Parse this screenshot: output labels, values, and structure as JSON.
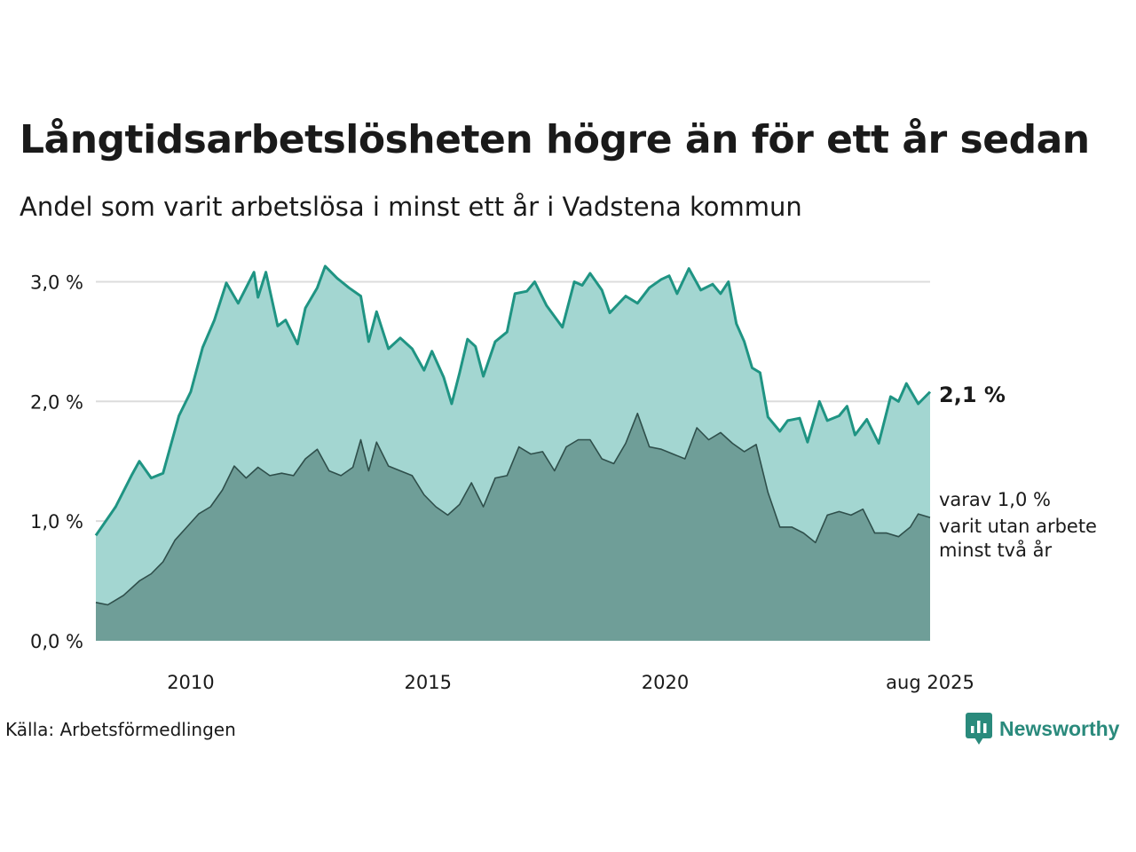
{
  "title": "Långtidsarbetslösheten högre än för ett år sedan",
  "subtitle": "Andel som varit arbetslösa i minst ett år i Vadstena kommun",
  "source": "Källa: Arbetsförmedlingen",
  "brand": "Newsworthy",
  "colors": {
    "line_total": "#1f9483",
    "area_total": "#a3d6d1",
    "line_two_years": "#2f4f4b",
    "area_two_years": "#6f9e98",
    "grid": "#dcdcdc",
    "brand": "#2a8a7c"
  },
  "chart_data": {
    "type": "area",
    "x_start": "2008-01",
    "x_end": "2025-08",
    "xticks": [
      {
        "x": "2010-01",
        "label": "2010"
      },
      {
        "x": "2015-01",
        "label": "2015"
      },
      {
        "x": "2020-01",
        "label": "2020"
      },
      {
        "x": "2025-08",
        "label": "aug 2025"
      }
    ],
    "ylim": [
      0,
      3.3
    ],
    "yticks": [
      {
        "value": 0,
        "label": "0,0 %"
      },
      {
        "value": 1,
        "label": "1,0 %"
      },
      {
        "value": 2,
        "label": "2,0 %"
      },
      {
        "value": 3,
        "label": "3,0 %"
      }
    ],
    "grid": true,
    "annotations": {
      "total_end": "2,1 %",
      "two_years_end": [
        "varav 1,0 %",
        "varit utan arbete",
        "minst två år"
      ]
    },
    "series": [
      {
        "key": "total",
        "anchors": [
          [
            "2008-01",
            0.88
          ],
          [
            "2008-06",
            1.12
          ],
          [
            "2008-10",
            1.38
          ],
          [
            "2008-12",
            1.5
          ],
          [
            "2009-03",
            1.36
          ],
          [
            "2009-06",
            1.4
          ],
          [
            "2009-10",
            1.88
          ],
          [
            "2010-01",
            2.08
          ],
          [
            "2010-04",
            2.45
          ],
          [
            "2010-07",
            2.68
          ],
          [
            "2010-10",
            2.99
          ],
          [
            "2011-01",
            2.82
          ],
          [
            "2011-05",
            3.08
          ],
          [
            "2011-06",
            2.87
          ],
          [
            "2011-08",
            3.08
          ],
          [
            "2011-11",
            2.63
          ],
          [
            "2012-01",
            2.68
          ],
          [
            "2012-04",
            2.48
          ],
          [
            "2012-06",
            2.78
          ],
          [
            "2012-09",
            2.95
          ],
          [
            "2012-11",
            3.13
          ],
          [
            "2013-02",
            3.03
          ],
          [
            "2013-05",
            2.95
          ],
          [
            "2013-08",
            2.88
          ],
          [
            "2013-10",
            2.5
          ],
          [
            "2013-12",
            2.75
          ],
          [
            "2014-03",
            2.44
          ],
          [
            "2014-06",
            2.53
          ],
          [
            "2014-09",
            2.44
          ],
          [
            "2014-12",
            2.26
          ],
          [
            "2015-02",
            2.42
          ],
          [
            "2015-05",
            2.2
          ],
          [
            "2015-07",
            1.98
          ],
          [
            "2015-09",
            2.24
          ],
          [
            "2015-11",
            2.52
          ],
          [
            "2016-01",
            2.46
          ],
          [
            "2016-03",
            2.21
          ],
          [
            "2016-06",
            2.5
          ],
          [
            "2016-09",
            2.58
          ],
          [
            "2016-11",
            2.9
          ],
          [
            "2017-02",
            2.92
          ],
          [
            "2017-04",
            3.0
          ],
          [
            "2017-07",
            2.8
          ],
          [
            "2017-11",
            2.62
          ],
          [
            "2018-02",
            3.0
          ],
          [
            "2018-04",
            2.97
          ],
          [
            "2018-06",
            3.07
          ],
          [
            "2018-09",
            2.93
          ],
          [
            "2018-11",
            2.74
          ],
          [
            "2019-03",
            2.88
          ],
          [
            "2019-06",
            2.82
          ],
          [
            "2019-09",
            2.95
          ],
          [
            "2019-12",
            3.02
          ],
          [
            "2020-02",
            3.05
          ],
          [
            "2020-04",
            2.9
          ],
          [
            "2020-07",
            3.11
          ],
          [
            "2020-10",
            2.93
          ],
          [
            "2021-01",
            2.98
          ],
          [
            "2021-03",
            2.9
          ],
          [
            "2021-05",
            3.0
          ],
          [
            "2021-07",
            2.65
          ],
          [
            "2021-09",
            2.5
          ],
          [
            "2021-11",
            2.28
          ],
          [
            "2022-01",
            2.24
          ],
          [
            "2022-03",
            1.87
          ],
          [
            "2022-06",
            1.75
          ],
          [
            "2022-08",
            1.84
          ],
          [
            "2022-11",
            1.86
          ],
          [
            "2023-01",
            1.66
          ],
          [
            "2023-04",
            2.0
          ],
          [
            "2023-06",
            1.84
          ],
          [
            "2023-09",
            1.88
          ],
          [
            "2023-11",
            1.96
          ],
          [
            "2024-01",
            1.72
          ],
          [
            "2024-04",
            1.85
          ],
          [
            "2024-07",
            1.65
          ],
          [
            "2024-10",
            2.04
          ],
          [
            "2024-12",
            2.0
          ],
          [
            "2025-02",
            2.15
          ],
          [
            "2025-05",
            1.98
          ],
          [
            "2025-08",
            2.08
          ]
        ]
      },
      {
        "key": "two_years",
        "anchors": [
          [
            "2008-01",
            0.32
          ],
          [
            "2008-04",
            0.3
          ],
          [
            "2008-08",
            0.38
          ],
          [
            "2008-12",
            0.5
          ],
          [
            "2009-03",
            0.56
          ],
          [
            "2009-06",
            0.66
          ],
          [
            "2009-09",
            0.84
          ],
          [
            "2009-12",
            0.95
          ],
          [
            "2010-03",
            1.06
          ],
          [
            "2010-06",
            1.12
          ],
          [
            "2010-09",
            1.26
          ],
          [
            "2010-12",
            1.46
          ],
          [
            "2011-03",
            1.36
          ],
          [
            "2011-06",
            1.45
          ],
          [
            "2011-09",
            1.38
          ],
          [
            "2011-12",
            1.4
          ],
          [
            "2012-03",
            1.38
          ],
          [
            "2012-06",
            1.52
          ],
          [
            "2012-09",
            1.6
          ],
          [
            "2012-12",
            1.42
          ],
          [
            "2013-03",
            1.38
          ],
          [
            "2013-06",
            1.45
          ],
          [
            "2013-08",
            1.68
          ],
          [
            "2013-10",
            1.42
          ],
          [
            "2013-12",
            1.66
          ],
          [
            "2014-03",
            1.46
          ],
          [
            "2014-06",
            1.42
          ],
          [
            "2014-09",
            1.38
          ],
          [
            "2014-12",
            1.22
          ],
          [
            "2015-03",
            1.12
          ],
          [
            "2015-06",
            1.05
          ],
          [
            "2015-09",
            1.14
          ],
          [
            "2015-12",
            1.32
          ],
          [
            "2016-03",
            1.12
          ],
          [
            "2016-06",
            1.36
          ],
          [
            "2016-09",
            1.38
          ],
          [
            "2016-12",
            1.62
          ],
          [
            "2017-03",
            1.56
          ],
          [
            "2017-06",
            1.58
          ],
          [
            "2017-09",
            1.42
          ],
          [
            "2017-12",
            1.62
          ],
          [
            "2018-03",
            1.68
          ],
          [
            "2018-06",
            1.68
          ],
          [
            "2018-09",
            1.52
          ],
          [
            "2018-12",
            1.48
          ],
          [
            "2019-03",
            1.65
          ],
          [
            "2019-06",
            1.9
          ],
          [
            "2019-09",
            1.62
          ],
          [
            "2019-12",
            1.6
          ],
          [
            "2020-03",
            1.56
          ],
          [
            "2020-06",
            1.52
          ],
          [
            "2020-09",
            1.78
          ],
          [
            "2020-12",
            1.68
          ],
          [
            "2021-03",
            1.74
          ],
          [
            "2021-06",
            1.65
          ],
          [
            "2021-09",
            1.58
          ],
          [
            "2021-12",
            1.64
          ],
          [
            "2022-03",
            1.24
          ],
          [
            "2022-06",
            0.95
          ],
          [
            "2022-09",
            0.95
          ],
          [
            "2022-12",
            0.9
          ],
          [
            "2023-03",
            0.82
          ],
          [
            "2023-06",
            1.05
          ],
          [
            "2023-09",
            1.08
          ],
          [
            "2023-12",
            1.05
          ],
          [
            "2024-03",
            1.1
          ],
          [
            "2024-06",
            0.9
          ],
          [
            "2024-09",
            0.9
          ],
          [
            "2024-12",
            0.87
          ],
          [
            "2025-03",
            0.95
          ],
          [
            "2025-05",
            1.06
          ],
          [
            "2025-08",
            1.03
          ]
        ]
      }
    ]
  }
}
